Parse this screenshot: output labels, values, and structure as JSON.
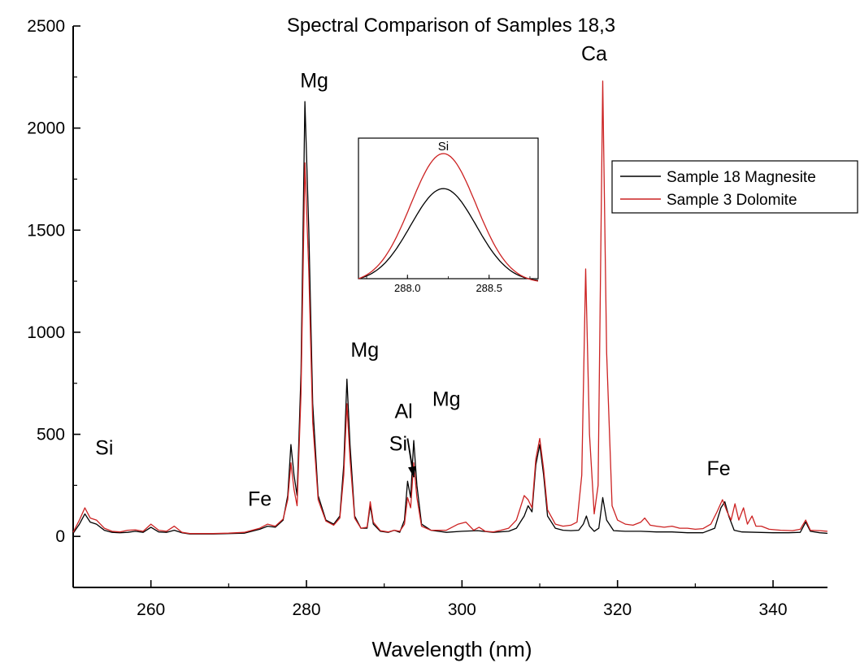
{
  "chart_data": {
    "type": "line",
    "title": "Spectral Comparison of Samples 18,3",
    "xlabel": "Wavelength (nm)",
    "ylabel": "",
    "xlim": [
      250,
      347
    ],
    "ylim": [
      -250,
      2500
    ],
    "x_ticks": [
      260,
      280,
      300,
      320,
      340
    ],
    "y_ticks": [
      0,
      500,
      1000,
      1500,
      2000,
      2500
    ],
    "grid": false,
    "legend_position": "right",
    "series": [
      {
        "name": "Sample 18 Magnesite",
        "color": "#000000",
        "points": [
          [
            250,
            15
          ],
          [
            250.8,
            60
          ],
          [
            251.5,
            110
          ],
          [
            252.2,
            70
          ],
          [
            253,
            60
          ],
          [
            254,
            30
          ],
          [
            255,
            20
          ],
          [
            256,
            18
          ],
          [
            257,
            20
          ],
          [
            258,
            25
          ],
          [
            259,
            20
          ],
          [
            260,
            45
          ],
          [
            261,
            22
          ],
          [
            262,
            20
          ],
          [
            263,
            30
          ],
          [
            264,
            18
          ],
          [
            265,
            12
          ],
          [
            266,
            12
          ],
          [
            268,
            12
          ],
          [
            270,
            14
          ],
          [
            272,
            16
          ],
          [
            274,
            35
          ],
          [
            275,
            50
          ],
          [
            276,
            45
          ],
          [
            277,
            80
          ],
          [
            277.6,
            200
          ],
          [
            278,
            450
          ],
          [
            278.4,
            300
          ],
          [
            278.8,
            200
          ],
          [
            279.3,
            800
          ],
          [
            279.8,
            2130
          ],
          [
            280.3,
            1500
          ],
          [
            280.8,
            650
          ],
          [
            281.5,
            200
          ],
          [
            282.5,
            80
          ],
          [
            283.5,
            60
          ],
          [
            284.3,
            100
          ],
          [
            284.8,
            350
          ],
          [
            285.2,
            770
          ],
          [
            285.6,
            450
          ],
          [
            286.2,
            100
          ],
          [
            287,
            40
          ],
          [
            287.8,
            40
          ],
          [
            288.2,
            150
          ],
          [
            288.6,
            60
          ],
          [
            289.5,
            25
          ],
          [
            290.5,
            20
          ],
          [
            291.3,
            30
          ],
          [
            292,
            20
          ],
          [
            292.6,
            80
          ],
          [
            293,
            270
          ],
          [
            293.4,
            190
          ],
          [
            293.8,
            470
          ],
          [
            294.2,
            250
          ],
          [
            294.8,
            60
          ],
          [
            296,
            30
          ],
          [
            298,
            20
          ],
          [
            300,
            25
          ],
          [
            302,
            28
          ],
          [
            304,
            20
          ],
          [
            306,
            25
          ],
          [
            307,
            40
          ],
          [
            308,
            100
          ],
          [
            308.5,
            150
          ],
          [
            309,
            120
          ],
          [
            309.5,
            350
          ],
          [
            310,
            450
          ],
          [
            310.5,
            300
          ],
          [
            311,
            100
          ],
          [
            312,
            40
          ],
          [
            313,
            30
          ],
          [
            314,
            28
          ],
          [
            315,
            30
          ],
          [
            315.6,
            60
          ],
          [
            316,
            100
          ],
          [
            316.4,
            50
          ],
          [
            317,
            25
          ],
          [
            317.6,
            40
          ],
          [
            318.1,
            190
          ],
          [
            318.6,
            80
          ],
          [
            319.5,
            28
          ],
          [
            321,
            25
          ],
          [
            323,
            25
          ],
          [
            325,
            22
          ],
          [
            327,
            22
          ],
          [
            329,
            18
          ],
          [
            331,
            18
          ],
          [
            332.5,
            40
          ],
          [
            333.3,
            140
          ],
          [
            333.8,
            170
          ],
          [
            334.3,
            100
          ],
          [
            335,
            30
          ],
          [
            336,
            22
          ],
          [
            338,
            20
          ],
          [
            340,
            18
          ],
          [
            342,
            18
          ],
          [
            343.5,
            20
          ],
          [
            344.2,
            70
          ],
          [
            344.8,
            25
          ],
          [
            346,
            18
          ],
          [
            347,
            15
          ]
        ]
      },
      {
        "name": "Sample 3 Dolomite",
        "color": "#cc2222",
        "points": [
          [
            250,
            20
          ],
          [
            250.8,
            80
          ],
          [
            251.5,
            140
          ],
          [
            252.2,
            90
          ],
          [
            253,
            80
          ],
          [
            254,
            40
          ],
          [
            255,
            25
          ],
          [
            256,
            22
          ],
          [
            257,
            30
          ],
          [
            258,
            32
          ],
          [
            259,
            25
          ],
          [
            260,
            60
          ],
          [
            261,
            30
          ],
          [
            262,
            25
          ],
          [
            263,
            50
          ],
          [
            264,
            20
          ],
          [
            265,
            14
          ],
          [
            266,
            14
          ],
          [
            268,
            14
          ],
          [
            270,
            16
          ],
          [
            272,
            20
          ],
          [
            274,
            40
          ],
          [
            275,
            60
          ],
          [
            276,
            50
          ],
          [
            277,
            85
          ],
          [
            277.6,
            180
          ],
          [
            278,
            360
          ],
          [
            278.4,
            230
          ],
          [
            278.8,
            150
          ],
          [
            279.3,
            700
          ],
          [
            279.8,
            1830
          ],
          [
            280.3,
            1300
          ],
          [
            280.8,
            560
          ],
          [
            281.5,
            180
          ],
          [
            282.5,
            75
          ],
          [
            283.5,
            55
          ],
          [
            284.3,
            90
          ],
          [
            284.8,
            300
          ],
          [
            285.2,
            650
          ],
          [
            285.6,
            380
          ],
          [
            286.2,
            90
          ],
          [
            287,
            40
          ],
          [
            287.8,
            45
          ],
          [
            288.2,
            170
          ],
          [
            288.6,
            70
          ],
          [
            289.5,
            28
          ],
          [
            290.5,
            22
          ],
          [
            291.3,
            30
          ],
          [
            292,
            25
          ],
          [
            292.6,
            60
          ],
          [
            293,
            190
          ],
          [
            293.4,
            140
          ],
          [
            293.8,
            360
          ],
          [
            294.2,
            190
          ],
          [
            294.8,
            50
          ],
          [
            296,
            30
          ],
          [
            298,
            30
          ],
          [
            299.5,
            60
          ],
          [
            300.5,
            70
          ],
          [
            301.5,
            30
          ],
          [
            302.2,
            45
          ],
          [
            303,
            25
          ],
          [
            304,
            22
          ],
          [
            305,
            30
          ],
          [
            306,
            40
          ],
          [
            307,
            80
          ],
          [
            308,
            200
          ],
          [
            308.5,
            180
          ],
          [
            309,
            140
          ],
          [
            309.5,
            380
          ],
          [
            310,
            480
          ],
          [
            310.5,
            330
          ],
          [
            311,
            130
          ],
          [
            312,
            60
          ],
          [
            313,
            50
          ],
          [
            314,
            55
          ],
          [
            314.8,
            70
          ],
          [
            315.4,
            300
          ],
          [
            315.9,
            1310
          ],
          [
            316.4,
            500
          ],
          [
            317,
            110
          ],
          [
            317.5,
            250
          ],
          [
            318.1,
            2230
          ],
          [
            318.6,
            900
          ],
          [
            319.3,
            150
          ],
          [
            320,
            80
          ],
          [
            321,
            60
          ],
          [
            322,
            55
          ],
          [
            323,
            70
          ],
          [
            323.5,
            90
          ],
          [
            324.2,
            55
          ],
          [
            325,
            50
          ],
          [
            326,
            45
          ],
          [
            327,
            50
          ],
          [
            328,
            40
          ],
          [
            329,
            40
          ],
          [
            330,
            35
          ],
          [
            331,
            38
          ],
          [
            332,
            60
          ],
          [
            332.8,
            120
          ],
          [
            333.5,
            180
          ],
          [
            334.1,
            120
          ],
          [
            334.6,
            80
          ],
          [
            335.1,
            160
          ],
          [
            335.6,
            80
          ],
          [
            336.2,
            140
          ],
          [
            336.7,
            60
          ],
          [
            337.3,
            100
          ],
          [
            337.8,
            50
          ],
          [
            338.5,
            50
          ],
          [
            339.5,
            35
          ],
          [
            341,
            30
          ],
          [
            342.5,
            28
          ],
          [
            343.5,
            35
          ],
          [
            344.2,
            80
          ],
          [
            344.8,
            30
          ],
          [
            346,
            28
          ],
          [
            347,
            25
          ]
        ]
      }
    ],
    "annotations": [
      {
        "text": "Si",
        "x": 254,
        "y": 400
      },
      {
        "text": "Fe",
        "x": 274,
        "y": 150
      },
      {
        "text": "Mg",
        "x": 281,
        "y": 2200
      },
      {
        "text": "Mg",
        "x": 287.5,
        "y": 880
      },
      {
        "text": "Si",
        "x": 291.8,
        "y": 420
      },
      {
        "text": "Al",
        "x": 292.5,
        "y": 580
      },
      {
        "text": "Mg",
        "x": 298,
        "y": 640
      },
      {
        "text": "Ca",
        "x": 317,
        "y": 2330
      },
      {
        "text": "Fe",
        "x": 333,
        "y": 300
      }
    ],
    "arrow": {
      "from": [
        293,
        480
      ],
      "to": [
        293.8,
        290
      ]
    },
    "inset": {
      "label": "Si",
      "xlim": [
        287.7,
        288.8
      ],
      "x_ticks": [
        "288.0",
        "288.5"
      ],
      "x_tick_values": [
        288.0,
        288.5
      ],
      "peak_center": 288.22,
      "peak_sigma": 0.2,
      "peak_heights": [
        0.72,
        1.0
      ]
    }
  }
}
